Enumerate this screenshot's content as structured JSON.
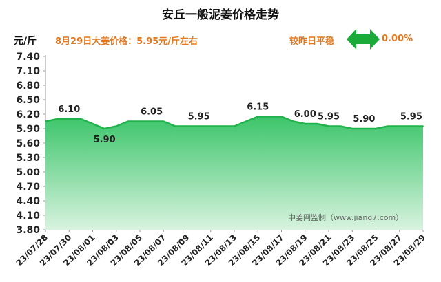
{
  "header": {
    "title": "安丘一般泥姜价格走势",
    "unit": "元/斤",
    "price_note": "8月29日大姜价格：5.95元/斤左右",
    "compare_label": "较昨日平稳",
    "change_value": "0.00%",
    "arrow_color": "#1aaa3a",
    "accent_color": "#e07820"
  },
  "watermark": "中姜网监制（www.jiang7.com）",
  "chart_data": {
    "type": "area",
    "title": "安丘一般泥姜价格走势",
    "ylabel": "元/斤",
    "ylim": [
      3.8,
      7.4
    ],
    "yticks": [
      "7.40",
      "7.10",
      "6.80",
      "6.50",
      "6.20",
      "5.90",
      "5.60",
      "5.30",
      "5.00",
      "4.70",
      "4.40",
      "4.10",
      "3.80"
    ],
    "xticks": [
      "23/07/28",
      "23/07/30",
      "23/08/01",
      "23/08/03",
      "23/08/05",
      "23/08/07",
      "23/08/09",
      "23/08/11",
      "23/08/13",
      "23/08/15",
      "23/08/17",
      "23/08/19",
      "23/08/21",
      "23/08/23",
      "23/08/25",
      "23/08/27",
      "23/08/29"
    ],
    "x": [
      "23/07/28",
      "23/07/29",
      "23/07/30",
      "23/07/31",
      "23/08/01",
      "23/08/02",
      "23/08/03",
      "23/08/04",
      "23/08/05",
      "23/08/06",
      "23/08/07",
      "23/08/08",
      "23/08/09",
      "23/08/10",
      "23/08/11",
      "23/08/12",
      "23/08/13",
      "23/08/14",
      "23/08/15",
      "23/08/16",
      "23/08/17",
      "23/08/18",
      "23/08/19",
      "23/08/20",
      "23/08/21",
      "23/08/22",
      "23/08/23",
      "23/08/24",
      "23/08/25",
      "23/08/26",
      "23/08/27",
      "23/08/28",
      "23/08/29"
    ],
    "values": [
      6.05,
      6.1,
      6.1,
      6.1,
      6.0,
      5.9,
      5.95,
      6.05,
      6.05,
      6.05,
      6.05,
      5.95,
      5.95,
      5.95,
      5.95,
      5.95,
      5.95,
      6.05,
      6.15,
      6.15,
      6.15,
      6.05,
      6.0,
      6.0,
      5.95,
      5.95,
      5.9,
      5.9,
      5.9,
      5.95,
      5.95,
      5.95,
      5.95
    ],
    "data_labels": [
      {
        "i": 2,
        "text": "6.10",
        "pos": "above"
      },
      {
        "i": 5,
        "text": "5.90",
        "pos": "below"
      },
      {
        "i": 9,
        "text": "6.05",
        "pos": "above"
      },
      {
        "i": 13,
        "text": "5.95",
        "pos": "above"
      },
      {
        "i": 18,
        "text": "6.15",
        "pos": "above"
      },
      {
        "i": 22,
        "text": "6.00",
        "pos": "above"
      },
      {
        "i": 24,
        "text": "5.95",
        "pos": "above"
      },
      {
        "i": 27,
        "text": "5.90",
        "pos": "above"
      },
      {
        "i": 31,
        "text": "5.95",
        "pos": "above"
      }
    ],
    "line_color": "#22b24c",
    "fill_top_color": "#3cc56a",
    "fill_bottom_color": "#d8f3df",
    "grid": false
  }
}
